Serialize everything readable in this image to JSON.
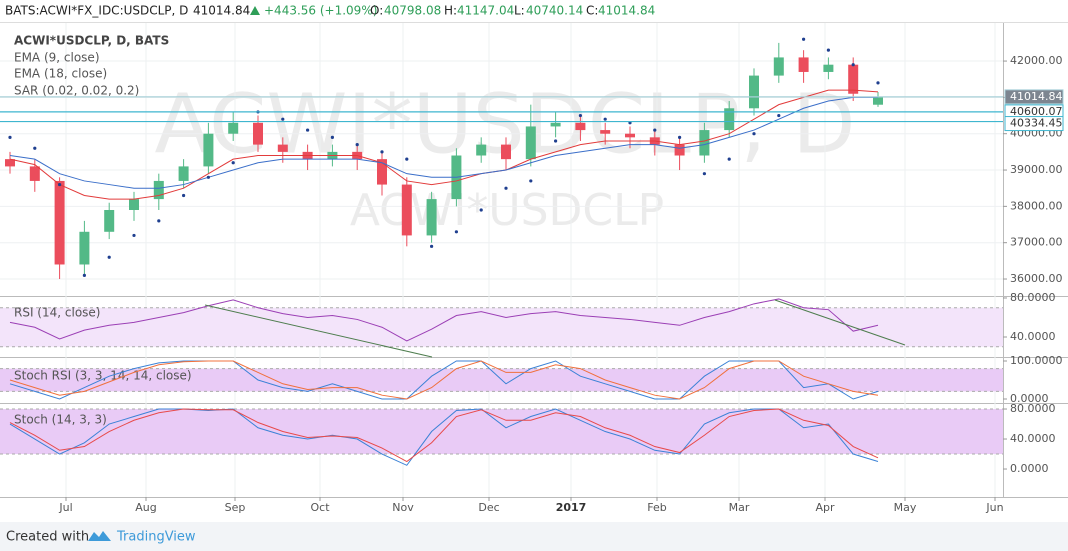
{
  "header": {
    "symbol": "BATS:ACWI*FX_IDC:USDCLP, D",
    "last": "41014.84",
    "change": "+443.56 (+1.09%)",
    "o_label": "O:",
    "o": "40798.08",
    "h_label": "H:",
    "h": "41147.04",
    "l_label": "L:",
    "l": "40740.14",
    "c_label": "C:",
    "c": "41014.84"
  },
  "chart_data": [
    {
      "type": "candlestick",
      "title": "ACWI*USDCLP, D, BATS",
      "watermark": "ACWI*USDCLP, D",
      "watermark_small": "ACWI*USDCLP",
      "x_labels": [
        "Jul",
        "Aug",
        "Sep",
        "Oct",
        "Nov",
        "Dec",
        "2017",
        "Feb",
        "Mar",
        "Apr",
        "May",
        "Jun"
      ],
      "open": [
        39300,
        39100,
        38700,
        36400,
        37300,
        37900,
        38200,
        38700,
        39100,
        40000,
        40300,
        39700,
        39500,
        39300,
        39500,
        39300,
        38600,
        37200,
        38200,
        39400,
        39700,
        39300,
        40200,
        40300,
        40100,
        40000,
        39900,
        39700,
        39400,
        40100,
        40700,
        41600,
        42100,
        41700,
        41900,
        40798.08
      ],
      "high": [
        39500,
        39300,
        38800,
        37600,
        38100,
        38400,
        38900,
        39300,
        40300,
        40600,
        40500,
        39900,
        39700,
        39700,
        39700,
        39500,
        38800,
        38400,
        39600,
        39900,
        39900,
        40800,
        40600,
        40500,
        40300,
        40200,
        40100,
        39900,
        40300,
        40900,
        41800,
        42500,
        42300,
        42100,
        42100,
        41147.04
      ],
      "low": [
        38900,
        38400,
        36000,
        36100,
        37100,
        37600,
        37900,
        38500,
        38900,
        39800,
        39500,
        39200,
        39000,
        39100,
        39000,
        38300,
        36900,
        37000,
        38000,
        39200,
        39000,
        39100,
        39900,
        39800,
        39700,
        39600,
        39400,
        39000,
        39200,
        39900,
        40500,
        41400,
        41400,
        41500,
        40900,
        40740.14
      ],
      "close": [
        39100,
        38700,
        36400,
        37300,
        37900,
        38200,
        38700,
        39100,
        40000,
        40300,
        39700,
        39500,
        39300,
        39500,
        39300,
        38600,
        37200,
        38200,
        39400,
        39700,
        39300,
        40200,
        40300,
        40100,
        40000,
        39900,
        39700,
        39400,
        40100,
        40700,
        41600,
        42100,
        41700,
        41900,
        41100,
        41014.84
      ],
      "up_color": "#53b987",
      "down_color": "#eb4d5c",
      "series": [
        {
          "name": "EMA (9, close)",
          "color": "#e23b3b",
          "values": [
            39300,
            39150,
            38600,
            38300,
            38200,
            38200,
            38300,
            38500,
            38900,
            39300,
            39400,
            39400,
            39400,
            39400,
            39400,
            39200,
            38700,
            38600,
            38700,
            38900,
            39000,
            39300,
            39500,
            39700,
            39800,
            39800,
            39800,
            39700,
            39800,
            40000,
            40400,
            40800,
            41000,
            41200,
            41200,
            41150
          ]
        },
        {
          "name": "EMA (18, close)",
          "color": "#3b6fc9",
          "values": [
            39400,
            39300,
            38900,
            38700,
            38600,
            38500,
            38500,
            38600,
            38800,
            39000,
            39200,
            39300,
            39300,
            39300,
            39300,
            39200,
            38900,
            38800,
            38800,
            38900,
            39000,
            39200,
            39400,
            39500,
            39600,
            39700,
            39700,
            39600,
            39700,
            39900,
            40100,
            40400,
            40700,
            40900,
            41000,
            41000
          ]
        },
        {
          "name": "SAR (0.02, 0.02, 0.2)",
          "color": "#1f3f8f",
          "style": "dots",
          "values": [
            39900,
            39600,
            38600,
            36100,
            36600,
            37200,
            37600,
            38300,
            38800,
            39200,
            40600,
            40400,
            40100,
            39900,
            39700,
            39500,
            39300,
            36900,
            37300,
            37900,
            38500,
            38700,
            39800,
            40500,
            40400,
            40300,
            40100,
            39900,
            38900,
            39300,
            40000,
            40500,
            42600,
            42300,
            41900,
            41400
          ]
        }
      ],
      "price_lines": [
        41014.84,
        40600.07,
        40334.45
      ],
      "price_line_colors": [
        "#a8d0d8",
        "#3fb6cf",
        "#3fb6cf"
      ],
      "ylim": [
        35560,
        42910
      ],
      "yticks": [
        {
          "value": 36000,
          "label": "36000.00"
        },
        {
          "value": 37000,
          "label": "37000.00"
        },
        {
          "value": 38000,
          "label": "38000.00"
        },
        {
          "value": 39000,
          "label": "39000.00"
        },
        {
          "value": 40000,
          "label": "40000.00"
        },
        {
          "value": 41000,
          "label": "41000.00"
        },
        {
          "value": 42000,
          "label": "42000.00"
        }
      ],
      "grid": true
    },
    {
      "type": "line",
      "title": "RSI (14, close)",
      "band": [
        30,
        70
      ],
      "band_color": "#f3e4fa",
      "series": [
        {
          "color": "#9b3fb5",
          "values": [
            55,
            50,
            38,
            47,
            52,
            55,
            60,
            65,
            72,
            78,
            70,
            64,
            60,
            62,
            58,
            50,
            36,
            48,
            62,
            66,
            60,
            64,
            66,
            62,
            60,
            58,
            55,
            52,
            60,
            66,
            74,
            79,
            70,
            68,
            46,
            52
          ]
        }
      ],
      "ylim": [
        19.5,
        81
      ],
      "yticks": [
        {
          "value": 40,
          "label": "40.0000"
        },
        {
          "value": 80,
          "label": "80.0000"
        }
      ]
    },
    {
      "type": "line",
      "title": "Stoch RSI (3, 3, 14, 14, close)",
      "band": [
        20,
        80
      ],
      "band_color": "#e9cbf6",
      "series": [
        {
          "color": "#3b82d6",
          "values": [
            40,
            20,
            0,
            30,
            60,
            80,
            95,
            100,
            100,
            100,
            50,
            30,
            20,
            40,
            20,
            0,
            0,
            60,
            100,
            100,
            40,
            80,
            100,
            60,
            40,
            20,
            0,
            0,
            60,
            100,
            100,
            100,
            30,
            40,
            0,
            20
          ]
        },
        {
          "color": "#f0703c",
          "values": [
            50,
            30,
            10,
            20,
            45,
            70,
            90,
            98,
            100,
            100,
            70,
            40,
            25,
            30,
            30,
            10,
            0,
            30,
            80,
            100,
            70,
            70,
            90,
            80,
            50,
            30,
            10,
            0,
            30,
            80,
            100,
            100,
            60,
            40,
            20,
            10
          ]
        }
      ],
      "ylim": [
        -7.9,
        107.9
      ],
      "yticks": [
        {
          "value": 0,
          "label": "0.0000"
        },
        {
          "value": 100,
          "label": "100.0000"
        }
      ]
    },
    {
      "type": "line",
      "title": "Stoch (14, 3, 3)",
      "band": [
        20,
        80
      ],
      "band_color": "#e9cbf6",
      "series": [
        {
          "color": "#3b82d6",
          "values": [
            60,
            40,
            20,
            35,
            60,
            70,
            80,
            80,
            78,
            80,
            55,
            45,
            40,
            45,
            40,
            20,
            5,
            50,
            78,
            80,
            55,
            70,
            80,
            65,
            50,
            40,
            25,
            20,
            60,
            75,
            80,
            80,
            55,
            60,
            20,
            10
          ]
        },
        {
          "color": "#e84a4a",
          "values": [
            62,
            45,
            25,
            30,
            50,
            65,
            75,
            80,
            79,
            79,
            62,
            50,
            42,
            44,
            42,
            28,
            10,
            35,
            70,
            79,
            65,
            65,
            75,
            70,
            55,
            45,
            30,
            22,
            45,
            70,
            78,
            80,
            65,
            58,
            30,
            15
          ]
        }
      ],
      "ylim": [
        -37.3,
        86.7
      ],
      "yticks": [
        {
          "value": 0,
          "label": "0.0000"
        },
        {
          "value": 40,
          "label": "40.0000"
        },
        {
          "value": 80,
          "label": "80.0000"
        }
      ]
    }
  ],
  "footer": {
    "created": "Created with",
    "brand": "TradingView"
  }
}
